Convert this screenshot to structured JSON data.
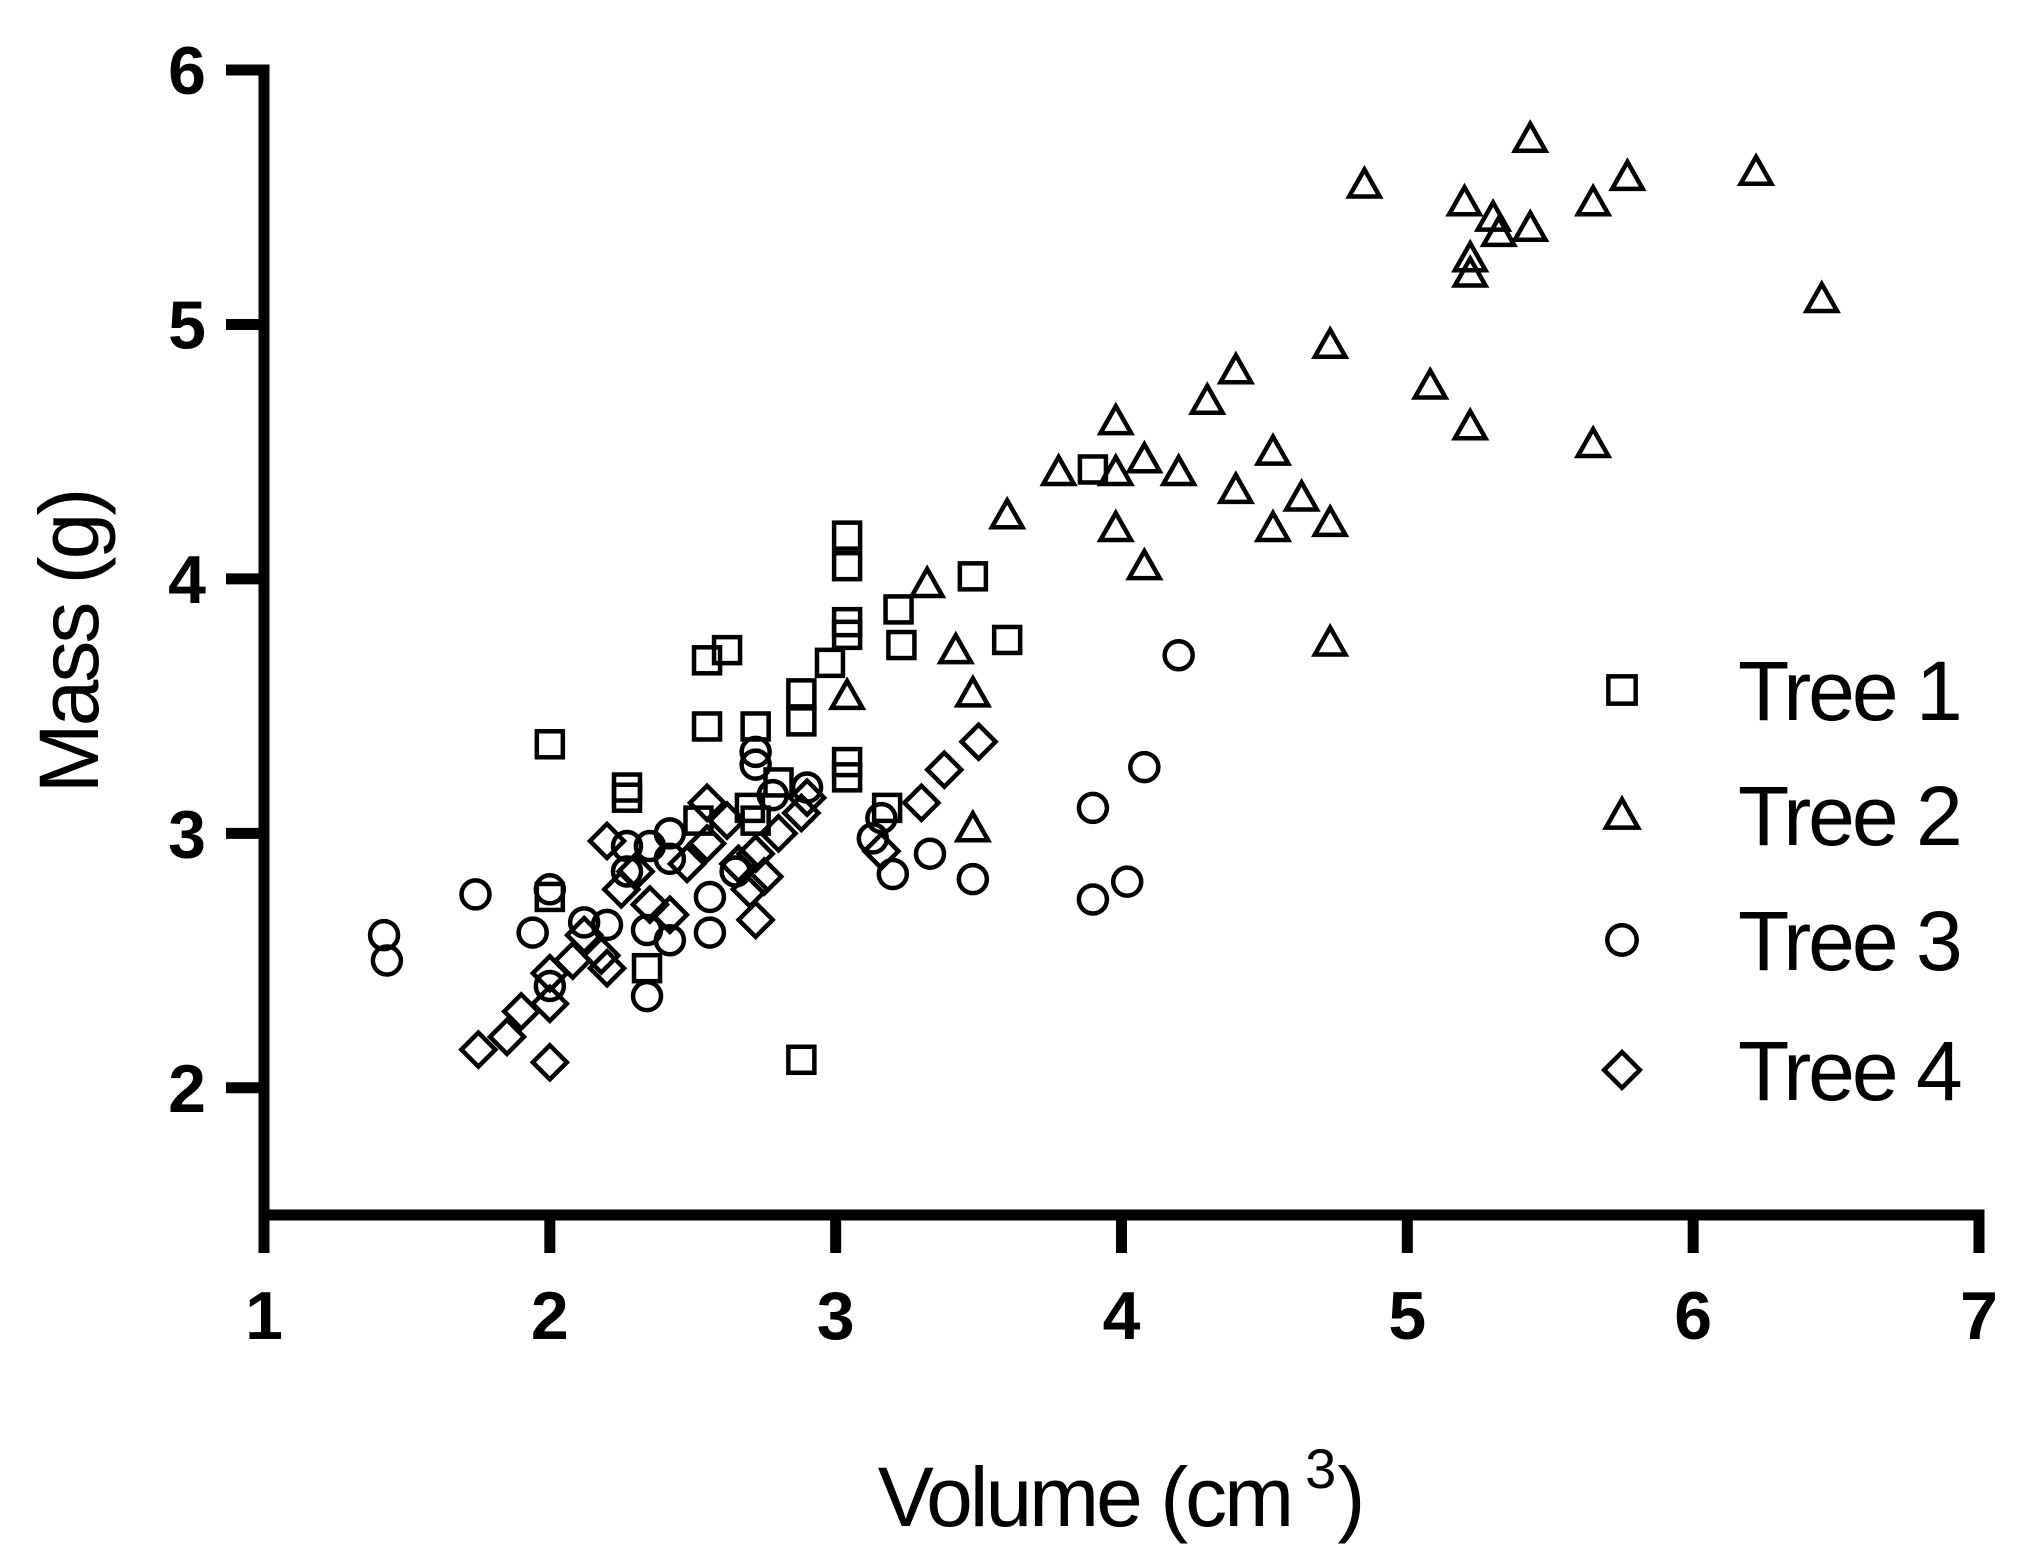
{
  "chart_data": {
    "type": "scatter",
    "xlabel": "Volume (cm",
    "xlabel_superscript": "3",
    "xlabel_close": ")",
    "ylabel": "Mass (g)",
    "xlim": [
      1,
      7
    ],
    "ylim": [
      1.5,
      6
    ],
    "xticks": [
      "1",
      "2",
      "3",
      "4",
      "5",
      "6",
      "7"
    ],
    "yticks": [
      "2",
      "3",
      "4",
      "5",
      "6"
    ],
    "grid": false,
    "legend_position": "right",
    "series": [
      {
        "name": "Tree 1",
        "marker": "square",
        "points": [
          [
            2.0,
            3.35
          ],
          [
            2.27,
            3.18
          ],
          [
            2.27,
            3.14
          ],
          [
            2.34,
            2.47
          ],
          [
            2.55,
            3.68
          ],
          [
            2.55,
            3.42
          ],
          [
            2.62,
            3.72
          ],
          [
            2.72,
            3.42
          ],
          [
            2.72,
            3.05
          ],
          [
            2.88,
            3.55
          ],
          [
            2.88,
            3.44
          ],
          [
            2.88,
            2.11
          ],
          [
            2.98,
            3.67
          ],
          [
            3.04,
            4.17
          ],
          [
            3.04,
            4.05
          ],
          [
            3.04,
            3.83
          ],
          [
            3.04,
            3.78
          ],
          [
            3.04,
            3.28
          ],
          [
            3.04,
            3.22
          ],
          [
            3.22,
            3.88
          ],
          [
            3.23,
            3.74
          ],
          [
            3.48,
            4.01
          ],
          [
            3.6,
            3.76
          ],
          [
            3.18,
            3.1
          ],
          [
            2.7,
            3.1
          ],
          [
            2.8,
            3.2
          ],
          [
            2.52,
            3.05
          ],
          [
            3.9,
            4.43
          ],
          [
            2.0,
            2.75
          ]
        ]
      },
      {
        "name": "Tree 2",
        "marker": "triangle",
        "points": [
          [
            3.04,
            3.54
          ],
          [
            3.32,
            3.98
          ],
          [
            3.42,
            3.72
          ],
          [
            3.48,
            3.55
          ],
          [
            3.48,
            3.02
          ],
          [
            3.6,
            4.25
          ],
          [
            3.78,
            4.42
          ],
          [
            3.98,
            4.62
          ],
          [
            3.98,
            4.42
          ],
          [
            3.98,
            4.2
          ],
          [
            4.08,
            4.47
          ],
          [
            4.08,
            4.05
          ],
          [
            4.2,
            4.42
          ],
          [
            4.3,
            4.7
          ],
          [
            4.4,
            4.82
          ],
          [
            4.4,
            4.35
          ],
          [
            4.53,
            4.5
          ],
          [
            4.53,
            4.2
          ],
          [
            4.63,
            4.32
          ],
          [
            4.73,
            4.92
          ],
          [
            4.73,
            4.22
          ],
          [
            4.73,
            3.75
          ],
          [
            4.85,
            5.55
          ],
          [
            5.08,
            4.76
          ],
          [
            5.2,
            5.48
          ],
          [
            5.22,
            5.26
          ],
          [
            5.22,
            5.2
          ],
          [
            5.22,
            4.6
          ],
          [
            5.3,
            5.42
          ],
          [
            5.32,
            5.36
          ],
          [
            5.43,
            5.73
          ],
          [
            5.43,
            5.38
          ],
          [
            5.65,
            5.48
          ],
          [
            5.65,
            4.53
          ],
          [
            5.77,
            5.58
          ],
          [
            6.22,
            5.6
          ],
          [
            6.45,
            5.1
          ]
        ]
      },
      {
        "name": "Tree 3",
        "marker": "circle",
        "points": [
          [
            1.42,
            2.6
          ],
          [
            1.43,
            2.5
          ],
          [
            1.74,
            2.76
          ],
          [
            1.94,
            2.61
          ],
          [
            2.0,
            2.78
          ],
          [
            2.0,
            2.4
          ],
          [
            2.12,
            2.65
          ],
          [
            2.2,
            2.64
          ],
          [
            2.27,
            2.95
          ],
          [
            2.27,
            2.85
          ],
          [
            2.34,
            2.62
          ],
          [
            2.34,
            2.36
          ],
          [
            2.42,
            3.0
          ],
          [
            2.42,
            2.9
          ],
          [
            2.42,
            2.58
          ],
          [
            2.56,
            2.75
          ],
          [
            2.56,
            2.61
          ],
          [
            2.72,
            3.32
          ],
          [
            2.72,
            3.27
          ],
          [
            2.78,
            3.15
          ],
          [
            2.9,
            3.18
          ],
          [
            3.13,
            2.98
          ],
          [
            3.16,
            3.06
          ],
          [
            3.2,
            2.84
          ],
          [
            3.33,
            2.92
          ],
          [
            3.48,
            2.82
          ],
          [
            3.9,
            3.1
          ],
          [
            3.9,
            2.74
          ],
          [
            4.02,
            2.81
          ],
          [
            4.08,
            3.26
          ],
          [
            4.2,
            3.7
          ],
          [
            2.65,
            2.85
          ],
          [
            2.35,
            2.95
          ]
        ]
      },
      {
        "name": "Tree 4",
        "marker": "diamond",
        "points": [
          [
            1.75,
            2.15
          ],
          [
            1.85,
            2.2
          ],
          [
            1.9,
            2.3
          ],
          [
            2.0,
            2.45
          ],
          [
            2.0,
            2.33
          ],
          [
            2.0,
            2.1
          ],
          [
            2.08,
            2.5
          ],
          [
            2.12,
            2.6
          ],
          [
            2.18,
            2.52
          ],
          [
            2.2,
            2.97
          ],
          [
            2.2,
            2.47
          ],
          [
            2.25,
            2.78
          ],
          [
            2.3,
            2.85
          ],
          [
            2.35,
            2.72
          ],
          [
            2.42,
            2.68
          ],
          [
            2.48,
            2.88
          ],
          [
            2.55,
            3.12
          ],
          [
            2.55,
            2.96
          ],
          [
            2.62,
            3.05
          ],
          [
            2.66,
            2.88
          ],
          [
            2.7,
            2.78
          ],
          [
            2.72,
            2.66
          ],
          [
            2.72,
            2.92
          ],
          [
            2.8,
            3.0
          ],
          [
            2.88,
            3.08
          ],
          [
            2.9,
            3.14
          ],
          [
            3.3,
            3.12
          ],
          [
            3.38,
            3.25
          ],
          [
            3.5,
            3.36
          ],
          [
            3.16,
            2.93
          ],
          [
            2.75,
            2.83
          ]
        ]
      }
    ]
  },
  "legend": {
    "items": [
      {
        "label": "Tree 1",
        "marker": "square"
      },
      {
        "label": "Tree 2",
        "marker": "triangle"
      },
      {
        "label": "Tree 3",
        "marker": "circle"
      },
      {
        "label": "Tree 4",
        "marker": "diamond"
      }
    ]
  },
  "colors": {
    "ink": "#000000",
    "background": "#ffffff"
  }
}
